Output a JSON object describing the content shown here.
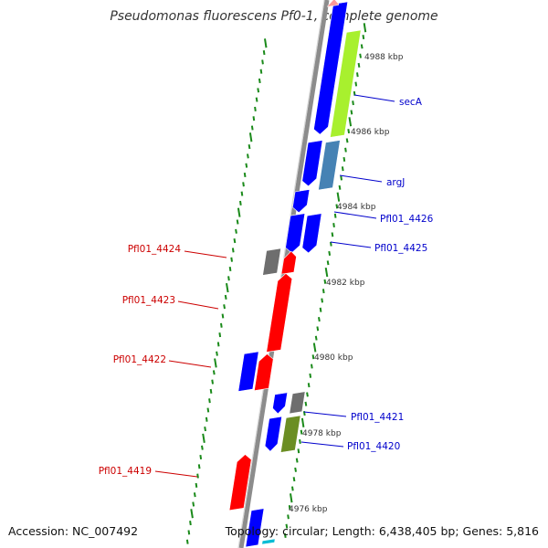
{
  "title": "Pseudomonas fluorescens Pf0-1, complete genome",
  "accession": "Accession: NC_007492",
  "topology": "Topology: circular; Length: 6,438,405 bp; Genes: 5,816",
  "colors": {
    "backbone": "#8c8c8c",
    "forward_gene": "#0000ff",
    "reverse_gene": "#ff0000",
    "other_gene": "#6e6e6e",
    "forward_label": "#0000cc",
    "reverse_label": "#cc0000",
    "ruler_tick": "#1a8a1a",
    "secA_feature": "#a8f02e",
    "argJ_feature": "#4682b4",
    "pfl4420_feature": "#6b8e23",
    "top_feature": "#ff9999",
    "bottom_feature": "#00bcd4"
  },
  "scale_labels": [
    "4988 kbp",
    "4986 kbp",
    "4984 kbp",
    "4982 kbp",
    "4980 kbp",
    "4978 kbp",
    "4976 kbp"
  ],
  "gene_labels": [
    {
      "text": "secA",
      "strand": "forward"
    },
    {
      "text": "argJ",
      "strand": "forward"
    },
    {
      "text": "Pfl01_4426",
      "strand": "forward"
    },
    {
      "text": "Pfl01_4425",
      "strand": "forward"
    },
    {
      "text": "Pfl01_4421",
      "strand": "forward"
    },
    {
      "text": "Pfl01_4420",
      "strand": "forward"
    },
    {
      "text": "Pfl01_4424",
      "strand": "reverse"
    },
    {
      "text": "Pfl01_4423",
      "strand": "reverse"
    },
    {
      "text": "Pfl01_4422",
      "strand": "reverse"
    },
    {
      "text": "Pfl01_4419",
      "strand": "reverse"
    }
  ]
}
